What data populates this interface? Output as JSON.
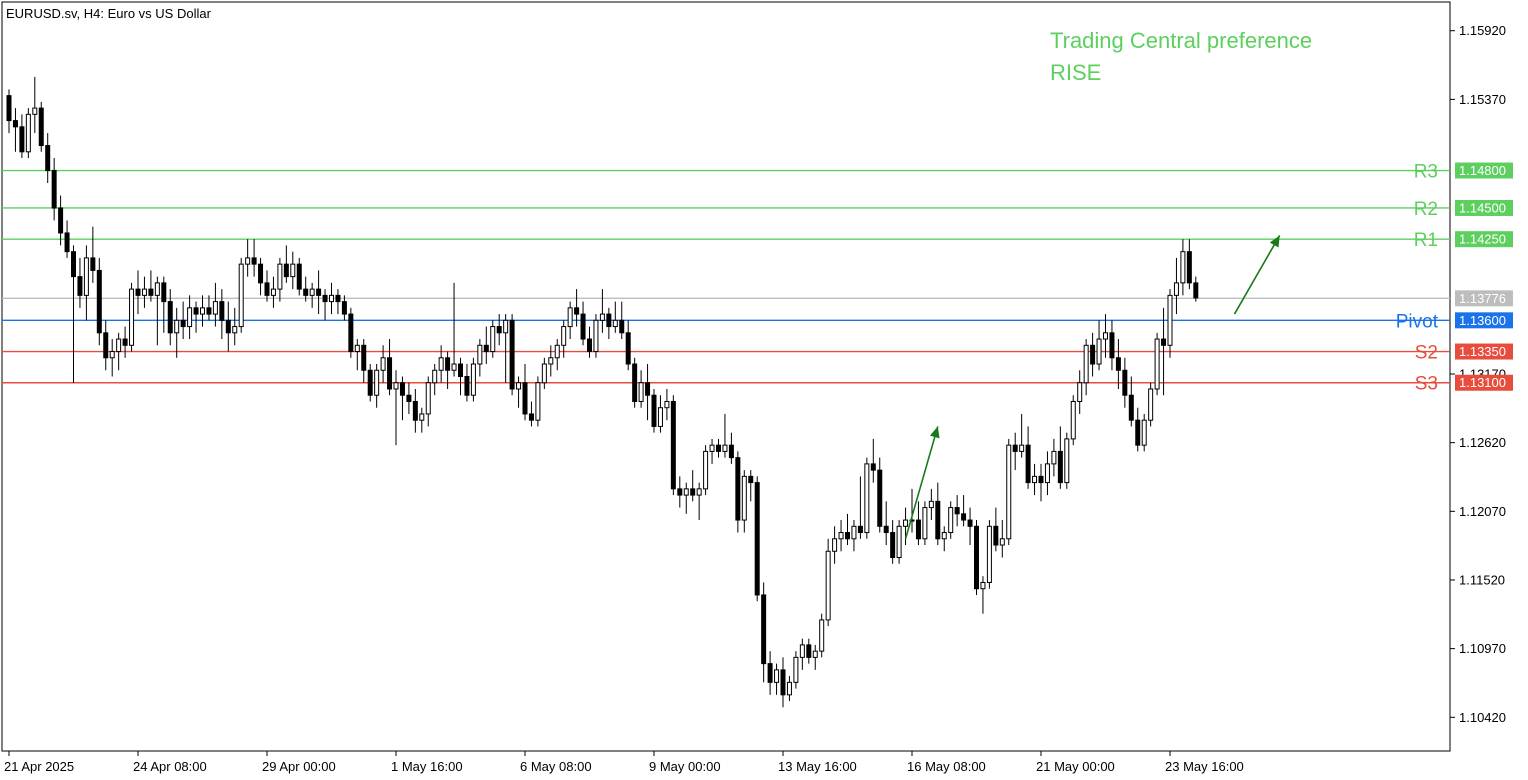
{
  "header": {
    "symbol_label": "EURUSD.sv, H4:  Euro vs US Dollar"
  },
  "annotation": {
    "line1": "Trading Central preference",
    "line2": "RISE",
    "color": "#5ccf5f"
  },
  "colors": {
    "resistance": "#5ccf5f",
    "support": "#e84c3d",
    "pivot": "#1a73e8",
    "current": "#bdbdbd",
    "arrow": "#1a7a1a",
    "candle": "#000000"
  },
  "chart_data": {
    "type": "candlestick",
    "title": "EURUSD.sv, H4:  Euro vs US Dollar",
    "y_range": [
      1.1015,
      1.1615
    ],
    "y_ticks": [
      "1.15920",
      "1.15370",
      "1.13170",
      "1.12620",
      "1.12070",
      "1.11520",
      "1.10970",
      "1.10420"
    ],
    "x_ticks": [
      {
        "label": "21 Apr 2025",
        "index": 0
      },
      {
        "label": "24 Apr 08:00",
        "index": 20
      },
      {
        "label": "29 Apr 00:00",
        "index": 40
      },
      {
        "label": "1 May 16:00",
        "index": 60
      },
      {
        "label": "6 May 08:00",
        "index": 80
      },
      {
        "label": "9 May 00:00",
        "index": 100
      },
      {
        "label": "13 May 16:00",
        "index": 120
      },
      {
        "label": "16 May 08:00",
        "index": 140
      },
      {
        "label": "21 May 00:00",
        "index": 160
      },
      {
        "label": "23 May 16:00",
        "index": 180
      }
    ],
    "levels": [
      {
        "name": "R3",
        "value": 1.148,
        "label": "1.14800",
        "kind": "resistance"
      },
      {
        "name": "R2",
        "value": 1.145,
        "label": "1.14500",
        "kind": "resistance"
      },
      {
        "name": "R1",
        "value": 1.1425,
        "label": "1.14250",
        "kind": "resistance"
      },
      {
        "name": "",
        "value": 1.13776,
        "label": "1.13776",
        "kind": "current"
      },
      {
        "name": "Pivot",
        "value": 1.136,
        "label": "1.13600",
        "kind": "pivot"
      },
      {
        "name": "S2",
        "value": 1.1335,
        "label": "1.13350",
        "kind": "support"
      },
      {
        "name": "S3",
        "value": 1.131,
        "label": "1.13100",
        "kind": "support"
      }
    ],
    "arrows": [
      {
        "from": [
          139,
          1.1185
        ],
        "to": [
          144,
          1.1275
        ]
      },
      {
        "from": [
          190,
          1.1365
        ],
        "to": [
          197,
          1.1428
        ]
      }
    ],
    "candles": [
      [
        1.154,
        1.1545,
        1.151,
        1.152
      ],
      [
        1.152,
        1.153,
        1.1495,
        1.1515
      ],
      [
        1.1515,
        1.1525,
        1.149,
        1.1495
      ],
      [
        1.1495,
        1.153,
        1.149,
        1.1525
      ],
      [
        1.1525,
        1.1555,
        1.151,
        1.153
      ],
      [
        1.153,
        1.1535,
        1.1495,
        1.15
      ],
      [
        1.15,
        1.151,
        1.147,
        1.148
      ],
      [
        1.148,
        1.149,
        1.144,
        1.145
      ],
      [
        1.145,
        1.146,
        1.142,
        1.143
      ],
      [
        1.143,
        1.144,
        1.141,
        1.1415
      ],
      [
        1.1415,
        1.142,
        1.131,
        1.1395
      ],
      [
        1.1395,
        1.141,
        1.137,
        1.138
      ],
      [
        1.138,
        1.142,
        1.136,
        1.141
      ],
      [
        1.141,
        1.1435,
        1.139,
        1.14
      ],
      [
        1.14,
        1.141,
        1.134,
        1.135
      ],
      [
        1.135,
        1.136,
        1.132,
        1.133
      ],
      [
        1.133,
        1.1345,
        1.1315,
        1.1335
      ],
      [
        1.1335,
        1.135,
        1.132,
        1.1345
      ],
      [
        1.1345,
        1.1355,
        1.133,
        1.134
      ],
      [
        1.134,
        1.139,
        1.1335,
        1.1385
      ],
      [
        1.1385,
        1.14,
        1.1365,
        1.138
      ],
      [
        1.138,
        1.1395,
        1.137,
        1.1385
      ],
      [
        1.1385,
        1.14,
        1.1375,
        1.138
      ],
      [
        1.138,
        1.1395,
        1.134,
        1.139
      ],
      [
        1.139,
        1.1395,
        1.135,
        1.1375
      ],
      [
        1.1375,
        1.1385,
        1.134,
        1.135
      ],
      [
        1.135,
        1.137,
        1.133,
        1.136
      ],
      [
        1.136,
        1.1375,
        1.1345,
        1.1355
      ],
      [
        1.1355,
        1.138,
        1.1345,
        1.137
      ],
      [
        1.137,
        1.1375,
        1.135,
        1.1365
      ],
      [
        1.1365,
        1.138,
        1.1355,
        1.137
      ],
      [
        1.137,
        1.138,
        1.136,
        1.1365
      ],
      [
        1.1365,
        1.139,
        1.1355,
        1.1375
      ],
      [
        1.1375,
        1.1385,
        1.1345,
        1.136
      ],
      [
        1.136,
        1.1375,
        1.1335,
        1.135
      ],
      [
        1.135,
        1.137,
        1.134,
        1.1355
      ],
      [
        1.1355,
        1.141,
        1.135,
        1.1405
      ],
      [
        1.1405,
        1.1425,
        1.1395,
        1.141
      ],
      [
        1.141,
        1.1425,
        1.1395,
        1.1405
      ],
      [
        1.1405,
        1.141,
        1.138,
        1.139
      ],
      [
        1.139,
        1.14,
        1.1375,
        1.138
      ],
      [
        1.138,
        1.1395,
        1.137,
        1.1385
      ],
      [
        1.1385,
        1.141,
        1.1375,
        1.1405
      ],
      [
        1.1405,
        1.142,
        1.139,
        1.1395
      ],
      [
        1.1395,
        1.1415,
        1.1385,
        1.1405
      ],
      [
        1.1405,
        1.141,
        1.138,
        1.1385
      ],
      [
        1.1385,
        1.1395,
        1.1375,
        1.138
      ],
      [
        1.138,
        1.139,
        1.137,
        1.1385
      ],
      [
        1.1385,
        1.14,
        1.1365,
        1.138
      ],
      [
        1.138,
        1.1385,
        1.136,
        1.1375
      ],
      [
        1.1375,
        1.139,
        1.1365,
        1.138
      ],
      [
        1.138,
        1.1385,
        1.1365,
        1.1375
      ],
      [
        1.1375,
        1.138,
        1.136,
        1.1365
      ],
      [
        1.1365,
        1.137,
        1.133,
        1.1335
      ],
      [
        1.1335,
        1.1345,
        1.132,
        1.134
      ],
      [
        1.134,
        1.1345,
        1.131,
        1.132
      ],
      [
        1.132,
        1.1325,
        1.1295,
        1.13
      ],
      [
        1.13,
        1.1325,
        1.129,
        1.132
      ],
      [
        1.132,
        1.134,
        1.131,
        1.133
      ],
      [
        1.133,
        1.1345,
        1.13,
        1.1305
      ],
      [
        1.1305,
        1.132,
        1.126,
        1.131
      ],
      [
        1.131,
        1.1315,
        1.128,
        1.13
      ],
      [
        1.13,
        1.131,
        1.1285,
        1.1295
      ],
      [
        1.1295,
        1.1305,
        1.127,
        1.128
      ],
      [
        1.128,
        1.129,
        1.127,
        1.1285
      ],
      [
        1.1285,
        1.1315,
        1.1275,
        1.131
      ],
      [
        1.131,
        1.1325,
        1.13,
        1.132
      ],
      [
        1.132,
        1.134,
        1.131,
        1.133
      ],
      [
        1.133,
        1.1335,
        1.1305,
        1.132
      ],
      [
        1.132,
        1.139,
        1.1315,
        1.1325
      ],
      [
        1.1325,
        1.133,
        1.13,
        1.1315
      ],
      [
        1.1315,
        1.1325,
        1.1295,
        1.13
      ],
      [
        1.13,
        1.133,
        1.1295,
        1.1325
      ],
      [
        1.1325,
        1.1345,
        1.1315,
        1.134
      ],
      [
        1.134,
        1.1355,
        1.1325,
        1.1335
      ],
      [
        1.1335,
        1.136,
        1.133,
        1.1355
      ],
      [
        1.1355,
        1.1365,
        1.134,
        1.135
      ],
      [
        1.135,
        1.1365,
        1.131,
        1.136
      ],
      [
        1.136,
        1.1365,
        1.13,
        1.1305
      ],
      [
        1.1305,
        1.1315,
        1.129,
        1.131
      ],
      [
        1.131,
        1.1325,
        1.128,
        1.1285
      ],
      [
        1.1285,
        1.1295,
        1.1275,
        1.128
      ],
      [
        1.128,
        1.1315,
        1.1275,
        1.131
      ],
      [
        1.131,
        1.133,
        1.1305,
        1.1325
      ],
      [
        1.1325,
        1.134,
        1.1315,
        1.133
      ],
      [
        1.133,
        1.1345,
        1.132,
        1.134
      ],
      [
        1.134,
        1.136,
        1.133,
        1.1355
      ],
      [
        1.1355,
        1.1375,
        1.1345,
        1.137
      ],
      [
        1.137,
        1.1385,
        1.1355,
        1.1365
      ],
      [
        1.1365,
        1.1375,
        1.134,
        1.1345
      ],
      [
        1.1345,
        1.1355,
        1.133,
        1.1335
      ],
      [
        1.1335,
        1.1365,
        1.133,
        1.136
      ],
      [
        1.136,
        1.1385,
        1.135,
        1.1365
      ],
      [
        1.1365,
        1.137,
        1.1345,
        1.1355
      ],
      [
        1.1355,
        1.1375,
        1.135,
        1.136
      ],
      [
        1.136,
        1.1375,
        1.1345,
        1.135
      ],
      [
        1.135,
        1.136,
        1.132,
        1.1325
      ],
      [
        1.1325,
        1.133,
        1.129,
        1.1295
      ],
      [
        1.1295,
        1.132,
        1.129,
        1.131
      ],
      [
        1.131,
        1.1325,
        1.128,
        1.13
      ],
      [
        1.13,
        1.1305,
        1.127,
        1.1275
      ],
      [
        1.1275,
        1.13,
        1.127,
        1.129
      ],
      [
        1.129,
        1.1305,
        1.128,
        1.1295
      ],
      [
        1.1295,
        1.13,
        1.122,
        1.1225
      ],
      [
        1.1225,
        1.1235,
        1.121,
        1.122
      ],
      [
        1.122,
        1.123,
        1.1205,
        1.1225
      ],
      [
        1.1225,
        1.124,
        1.1215,
        1.122
      ],
      [
        1.122,
        1.123,
        1.12,
        1.1225
      ],
      [
        1.1225,
        1.126,
        1.122,
        1.1255
      ],
      [
        1.1255,
        1.1265,
        1.1245,
        1.126
      ],
      [
        1.126,
        1.1265,
        1.125,
        1.1255
      ],
      [
        1.1255,
        1.1285,
        1.125,
        1.126
      ],
      [
        1.126,
        1.127,
        1.1245,
        1.125
      ],
      [
        1.125,
        1.1255,
        1.119,
        1.12
      ],
      [
        1.12,
        1.124,
        1.119,
        1.1235
      ],
      [
        1.1235,
        1.124,
        1.1215,
        1.123
      ],
      [
        1.123,
        1.1235,
        1.1135,
        1.114
      ],
      [
        1.114,
        1.115,
        1.107,
        1.1085
      ],
      [
        1.1085,
        1.1095,
        1.106,
        1.107
      ],
      [
        1.107,
        1.1085,
        1.106,
        1.108
      ],
      [
        1.108,
        1.109,
        1.105,
        1.106
      ],
      [
        1.106,
        1.1075,
        1.1055,
        1.107
      ],
      [
        1.107,
        1.1095,
        1.1065,
        1.109
      ],
      [
        1.109,
        1.1105,
        1.108,
        1.11
      ],
      [
        1.11,
        1.1105,
        1.1085,
        1.109
      ],
      [
        1.109,
        1.11,
        1.108,
        1.1095
      ],
      [
        1.1095,
        1.1125,
        1.109,
        1.112
      ],
      [
        1.112,
        1.1185,
        1.1115,
        1.1175
      ],
      [
        1.1175,
        1.1195,
        1.1165,
        1.1185
      ],
      [
        1.1185,
        1.12,
        1.1175,
        1.119
      ],
      [
        1.119,
        1.1205,
        1.118,
        1.1185
      ],
      [
        1.1185,
        1.12,
        1.1175,
        1.1195
      ],
      [
        1.1195,
        1.1235,
        1.1185,
        1.119
      ],
      [
        1.119,
        1.125,
        1.1185,
        1.1245
      ],
      [
        1.1245,
        1.1265,
        1.123,
        1.124
      ],
      [
        1.124,
        1.125,
        1.119,
        1.1195
      ],
      [
        1.1195,
        1.1215,
        1.118,
        1.119
      ],
      [
        1.119,
        1.12,
        1.1165,
        1.117
      ],
      [
        1.117,
        1.12,
        1.1165,
        1.1195
      ],
      [
        1.1195,
        1.121,
        1.118,
        1.12
      ],
      [
        1.12,
        1.1225,
        1.119,
        1.12
      ],
      [
        1.12,
        1.1215,
        1.118,
        1.1185
      ],
      [
        1.1185,
        1.1215,
        1.118,
        1.121
      ],
      [
        1.121,
        1.1225,
        1.12,
        1.1215
      ],
      [
        1.1215,
        1.123,
        1.118,
        1.1185
      ],
      [
        1.1185,
        1.1195,
        1.1175,
        1.119
      ],
      [
        1.119,
        1.1215,
        1.1185,
        1.121
      ],
      [
        1.121,
        1.122,
        1.1195,
        1.1205
      ],
      [
        1.1205,
        1.122,
        1.1195,
        1.12
      ],
      [
        1.12,
        1.121,
        1.118,
        1.1195
      ],
      [
        1.1195,
        1.12,
        1.114,
        1.1145
      ],
      [
        1.1145,
        1.1155,
        1.1125,
        1.115
      ],
      [
        1.115,
        1.12,
        1.1145,
        1.1195
      ],
      [
        1.1195,
        1.121,
        1.1175,
        1.118
      ],
      [
        1.118,
        1.12,
        1.117,
        1.1185
      ],
      [
        1.1185,
        1.1265,
        1.118,
        1.126
      ],
      [
        1.126,
        1.127,
        1.124,
        1.1255
      ],
      [
        1.1255,
        1.1285,
        1.125,
        1.126
      ],
      [
        1.126,
        1.1275,
        1.1225,
        1.123
      ],
      [
        1.123,
        1.1245,
        1.122,
        1.1235
      ],
      [
        1.1235,
        1.1245,
        1.1215,
        1.123
      ],
      [
        1.123,
        1.1255,
        1.122,
        1.1245
      ],
      [
        1.1245,
        1.1265,
        1.1235,
        1.1255
      ],
      [
        1.1255,
        1.1275,
        1.1225,
        1.123
      ],
      [
        1.123,
        1.127,
        1.1225,
        1.1265
      ],
      [
        1.1265,
        1.13,
        1.126,
        1.1295
      ],
      [
        1.1295,
        1.132,
        1.1285,
        1.131
      ],
      [
        1.131,
        1.1345,
        1.13,
        1.134
      ],
      [
        1.134,
        1.135,
        1.1315,
        1.1325
      ],
      [
        1.1325,
        1.136,
        1.132,
        1.1345
      ],
      [
        1.1345,
        1.1365,
        1.133,
        1.135
      ],
      [
        1.135,
        1.136,
        1.132,
        1.133
      ],
      [
        1.133,
        1.1345,
        1.1305,
        1.132
      ],
      [
        1.132,
        1.133,
        1.129,
        1.13
      ],
      [
        1.13,
        1.1315,
        1.1275,
        1.128
      ],
      [
        1.128,
        1.129,
        1.1255,
        1.126
      ],
      [
        1.126,
        1.1285,
        1.1255,
        1.128
      ],
      [
        1.128,
        1.131,
        1.1275,
        1.1305
      ],
      [
        1.1305,
        1.135,
        1.13,
        1.1345
      ],
      [
        1.1345,
        1.137,
        1.13,
        1.134
      ],
      [
        1.134,
        1.1385,
        1.133,
        1.138
      ],
      [
        1.138,
        1.141,
        1.1365,
        1.139
      ],
      [
        1.139,
        1.1425,
        1.138,
        1.1415
      ],
      [
        1.1415,
        1.1425,
        1.1385,
        1.139
      ],
      [
        1.139,
        1.1395,
        1.1375,
        1.1378
      ]
    ]
  }
}
